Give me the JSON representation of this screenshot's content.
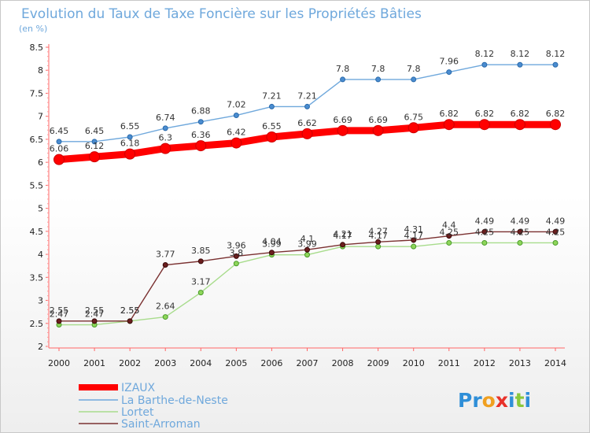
{
  "chart_data": {
    "type": "line",
    "title": "Evolution du Taux de Taxe Foncière sur les Propriétés Bâties",
    "ylabel": "(en %)",
    "xlabel": "",
    "ylim": [
      2,
      8.5
    ],
    "yticks": [
      "2",
      "2.5",
      "3",
      "3.5",
      "4",
      "4.5",
      "5",
      "5.5",
      "6",
      "6.5",
      "7",
      "7.5",
      "8",
      "8.5"
    ],
    "categories": [
      "2000",
      "2001",
      "2002",
      "2003",
      "2004",
      "2005",
      "2006",
      "2007",
      "2008",
      "2009",
      "2010",
      "2011",
      "2012",
      "2013",
      "2014"
    ],
    "grid": false,
    "legend_position": "bottom-left",
    "series": [
      {
        "name": "IZAUX",
        "color": "#ff0000",
        "values": [
          6.06,
          6.12,
          6.18,
          6.3,
          6.36,
          6.42,
          6.55,
          6.62,
          6.69,
          6.69,
          6.75,
          6.82,
          6.82,
          6.82,
          6.82
        ],
        "labels": [
          "6.06",
          "6.12",
          "6.18",
          "6.3",
          "6.36",
          "6.42",
          "6.55",
          "6.62",
          "6.69",
          "6.69",
          "6.75",
          "6.82",
          "6.82",
          "6.82",
          "6.82"
        ]
      },
      {
        "name": "La Barthe-de-Neste",
        "color": "#6fa8dc",
        "values": [
          6.45,
          6.45,
          6.55,
          6.74,
          6.88,
          7.02,
          7.21,
          7.21,
          7.8,
          7.8,
          7.8,
          7.96,
          8.12,
          8.12,
          8.12
        ],
        "labels": [
          "6.45",
          "6.45",
          "6.55",
          "6.74",
          "6.88",
          "7.02",
          "7.21",
          "7.21",
          "7.8",
          "7.8",
          "7.8",
          "7.96",
          "8.12",
          "8.12",
          "8.12"
        ]
      },
      {
        "name": "Lortet",
        "color": "#8ed65a",
        "values": [
          2.47,
          2.47,
          2.55,
          2.64,
          3.17,
          3.8,
          3.99,
          3.99,
          4.17,
          4.17,
          4.17,
          4.25,
          4.25,
          4.25,
          4.25
        ],
        "labels": [
          "2.47",
          "2.47",
          "2.55",
          "2.64",
          "3.17",
          "3.8",
          "3.99",
          "3.99",
          "4.17",
          "4.17",
          "4.17",
          "4.25",
          "4.25",
          "4.25",
          "4.25"
        ]
      },
      {
        "name": "Saint-Arroman",
        "color": "#6b1e1e",
        "values": [
          2.55,
          2.55,
          2.55,
          3.77,
          3.85,
          3.96,
          4.04,
          4.1,
          4.21,
          4.27,
          4.31,
          4.4,
          4.49,
          4.49,
          4.49
        ],
        "labels": [
          "2.55",
          "2.55",
          "2.55",
          "3.77",
          "3.85",
          "3.96",
          "4.04",
          "4.1",
          "4.21",
          "4.27",
          "4.31",
          "4.4",
          "4.49",
          "4.49",
          "4.49"
        ]
      }
    ]
  },
  "brand": {
    "p": "Pr",
    "o": "o",
    "x": "x",
    "i": "i",
    "t": "t",
    "last": "i"
  }
}
